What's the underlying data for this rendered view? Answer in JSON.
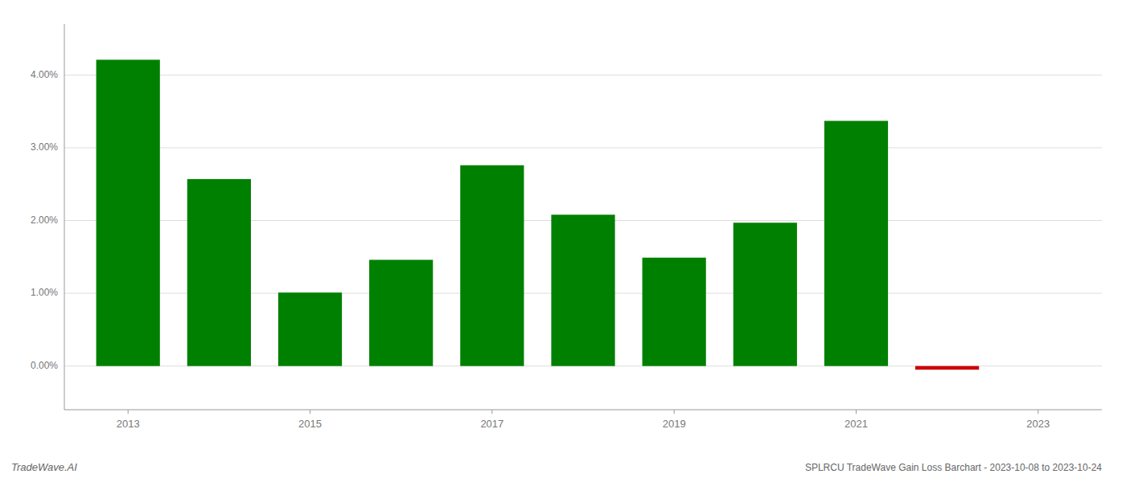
{
  "chart_data": {
    "type": "bar",
    "title": "SPLRCU TradeWave Gain Loss Barchart - 2023-10-08 to 2023-10-24",
    "annotations": [
      "TradeWave.AI"
    ],
    "x": [
      2013,
      2014,
      2015,
      2016,
      2017,
      2018,
      2019,
      2020,
      2021,
      2022
    ],
    "values": [
      0.0421,
      0.0257,
      0.0101,
      0.0146,
      0.0276,
      0.0208,
      0.0149,
      0.0197,
      0.0337,
      -0.0005
    ],
    "colors": [
      "#008000",
      "#008000",
      "#008000",
      "#008000",
      "#008000",
      "#008000",
      "#008000",
      "#008000",
      "#008000",
      "#cc0000"
    ],
    "xlim": [
      2012.3,
      2023.7
    ],
    "xticks": [
      2013,
      2015,
      2017,
      2019,
      2021,
      2023
    ],
    "ylim": [
      -0.006,
      0.047
    ],
    "yticks": [
      {
        "value": 0,
        "label": "0.00%"
      },
      {
        "value": 0.01,
        "label": "1.00%"
      },
      {
        "value": 0.02,
        "label": "2.00%"
      },
      {
        "value": 0.03,
        "label": "3.00%"
      },
      {
        "value": 0.04,
        "label": "4.00%"
      }
    ],
    "grid": true
  }
}
